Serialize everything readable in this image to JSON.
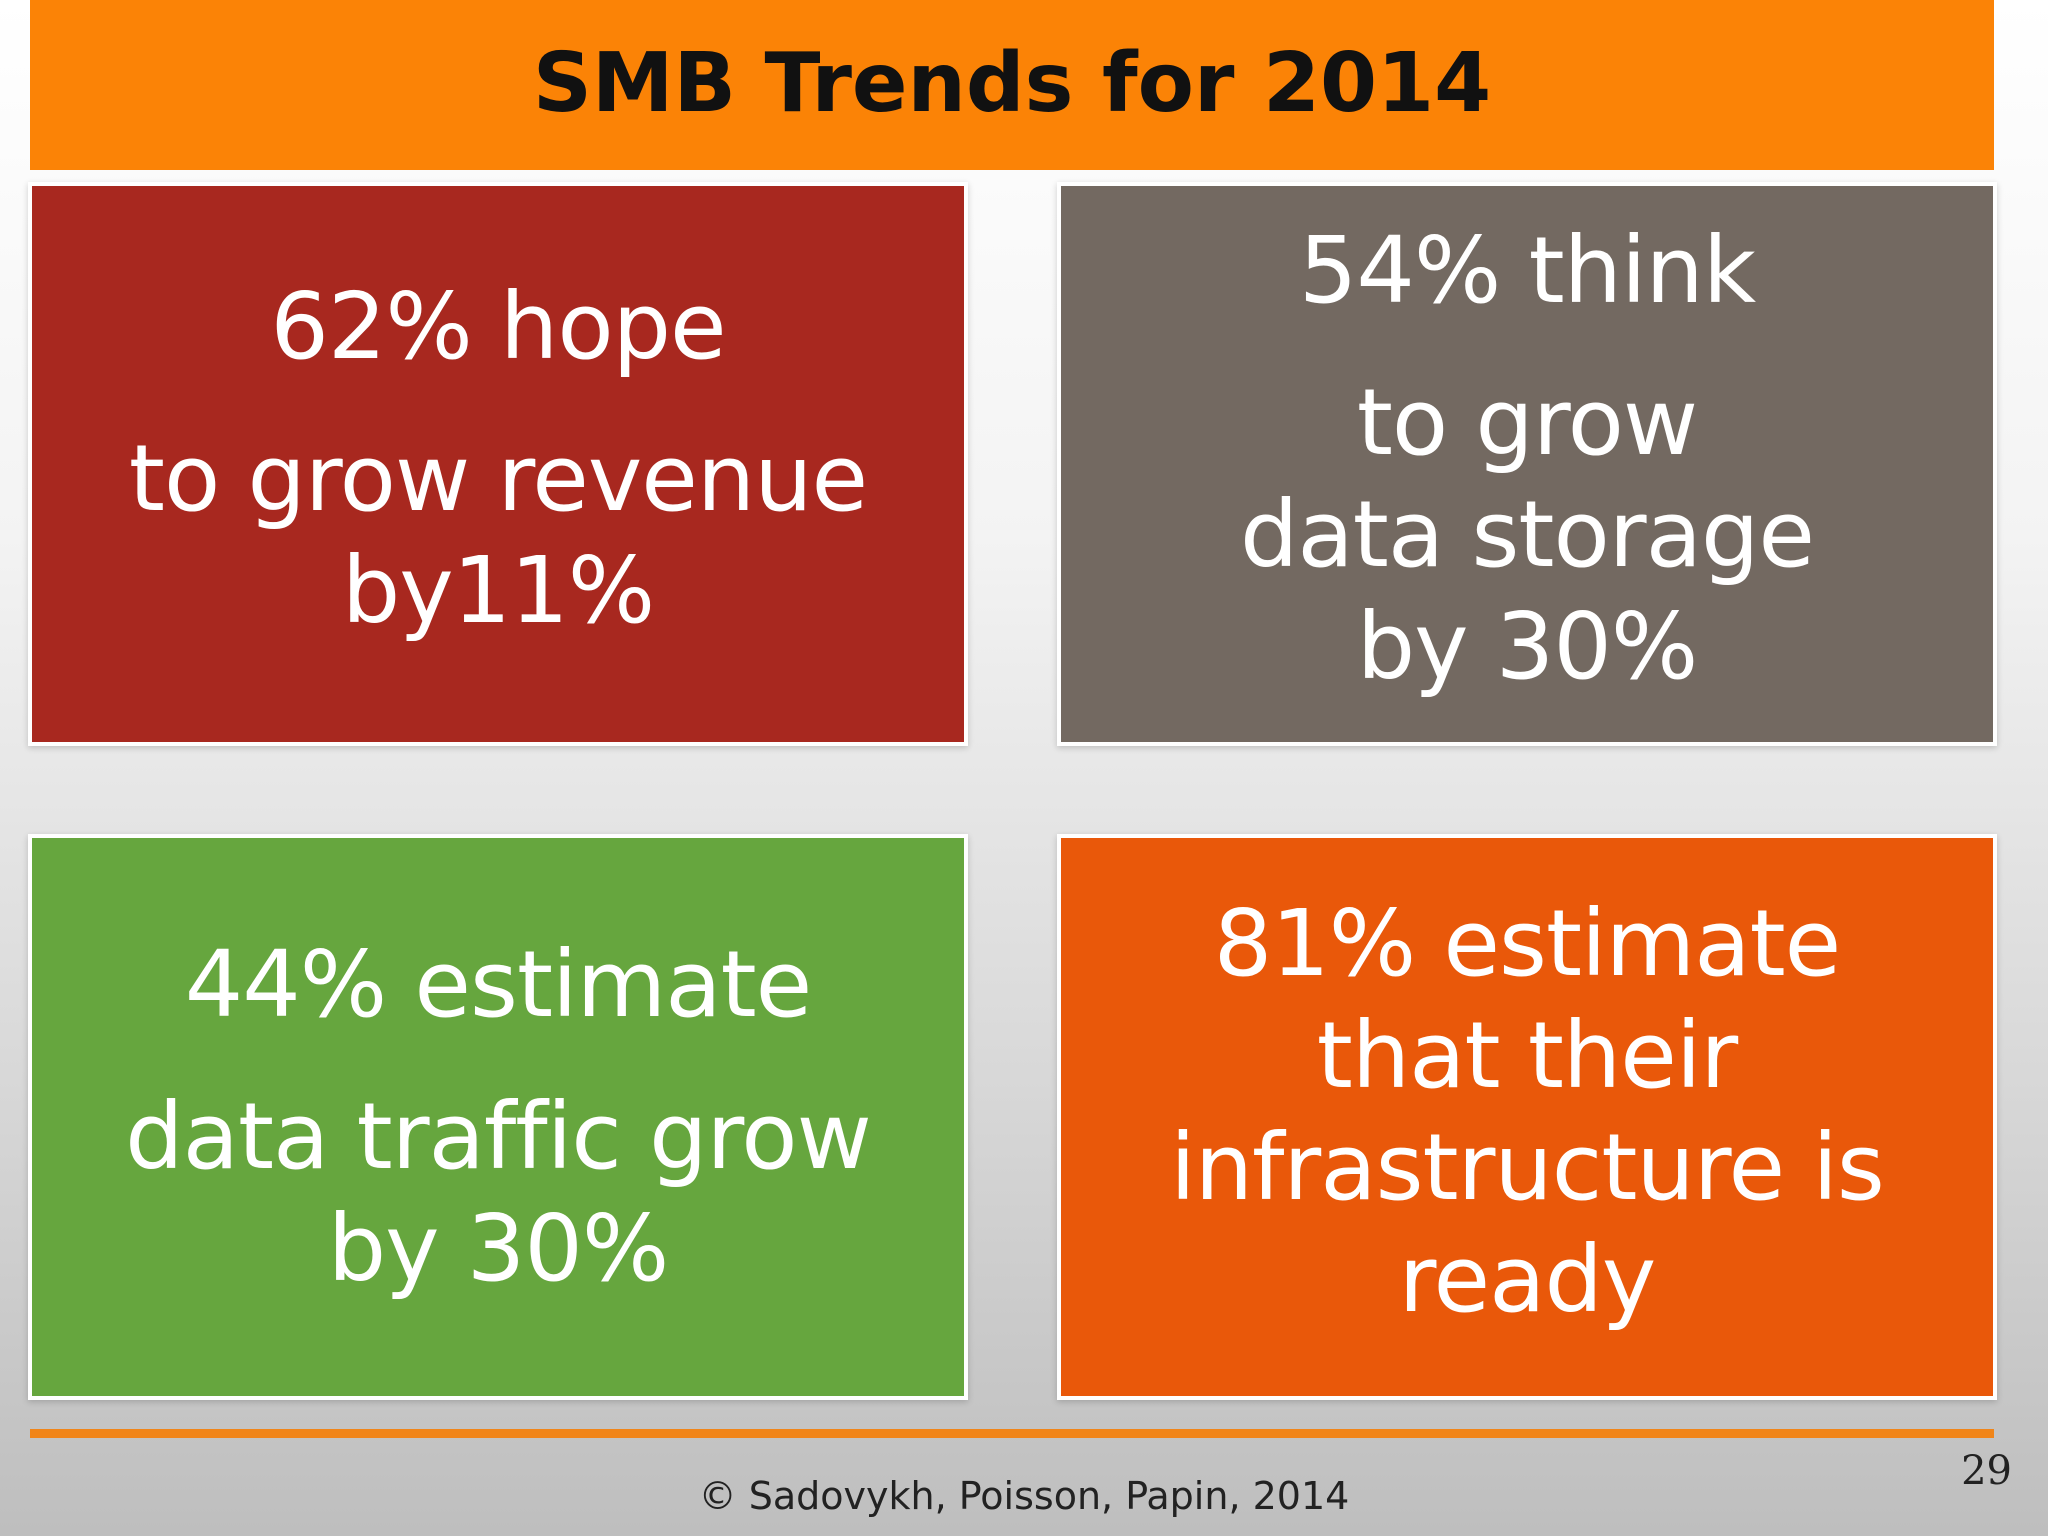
{
  "slide": {
    "title": "SMB Trends for 2014",
    "boxes": [
      {
        "lines": [
          "62% hope",
          "to  grow revenue",
          "by11%"
        ],
        "color": "#a8281f"
      },
      {
        "lines": [
          "54% think",
          "to grow",
          "data storage",
          "by 30%"
        ],
        "color": "#736961"
      },
      {
        "lines": [
          "44% estimate",
          "data traffic grow",
          "by 30%"
        ],
        "color": "#66a63e"
      },
      {
        "lines": [
          "81% estimate",
          "that their",
          "infrastructure is",
          "ready"
        ],
        "color": "#e9580a"
      }
    ],
    "footer": "© Sadovykh, Poisson, Papin, 2014",
    "page_number": "29",
    "accent_color": "#fb8306"
  }
}
